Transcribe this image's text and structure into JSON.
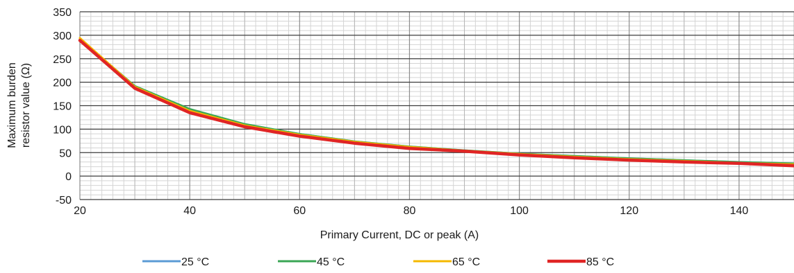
{
  "chart_data": {
    "type": "line",
    "title": "",
    "xlabel": "Primary Current, DC or peak (A)",
    "ylabel_lines": [
      "Maximum burden",
      "resistor value (Ω)"
    ],
    "xlim": [
      20,
      150
    ],
    "ylim": [
      -50,
      350
    ],
    "x_ticks": [
      20,
      40,
      60,
      80,
      100,
      120,
      140
    ],
    "y_ticks": [
      -50,
      0,
      50,
      100,
      150,
      200,
      250,
      300,
      350
    ],
    "grid": true,
    "legend_position": "bottom",
    "x": [
      20,
      30,
      40,
      50,
      60,
      70,
      80,
      90,
      100,
      110,
      120,
      130,
      140,
      150
    ],
    "series": [
      {
        "name": "25 °C",
        "color": "#5b9bd5",
        "values": [
          292,
          191,
          142,
          110,
          90,
          74,
          63,
          55,
          48,
          43,
          38,
          34,
          30,
          27
        ]
      },
      {
        "name": "45 °C",
        "color": "#3aa655",
        "values": [
          292,
          192,
          143,
          111,
          90,
          74,
          63,
          55,
          48,
          43,
          38,
          34,
          30,
          27
        ]
      },
      {
        "name": "65 °C",
        "color": "#f5b800",
        "values": [
          294,
          190,
          139,
          108,
          88,
          73,
          62,
          54,
          47,
          41,
          36,
          32,
          28,
          25
        ]
      },
      {
        "name": "85 °C",
        "color": "#e02525",
        "values": [
          289,
          187,
          135,
          105,
          85,
          70,
          59,
          53,
          45,
          39,
          34,
          30,
          27,
          22
        ]
      }
    ]
  }
}
